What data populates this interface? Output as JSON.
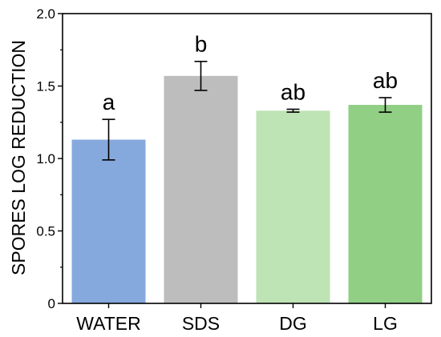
{
  "chart_data": {
    "type": "bar",
    "title": "",
    "xlabel": "",
    "ylabel": "SPORES LOG REDUCTION",
    "categories": [
      "WATER",
      "SDS",
      "DG",
      "LG"
    ],
    "values": [
      1.13,
      1.57,
      1.33,
      1.37
    ],
    "error_bars": [
      0.14,
      0.1,
      0.01,
      0.05
    ],
    "significance_labels": [
      "a",
      "b",
      "ab",
      "ab"
    ],
    "colors": [
      "#86A9DD",
      "#BDBDBD",
      "#BEE3B5",
      "#91CF85"
    ],
    "ylim": [
      0,
      2.0
    ],
    "yticks": [
      0,
      0.5,
      1.0,
      1.5,
      2.0
    ],
    "ytick_labels": [
      "0",
      "0.5",
      "1.0",
      "1.5",
      "2.0"
    ],
    "grid": false,
    "legend": false
  }
}
